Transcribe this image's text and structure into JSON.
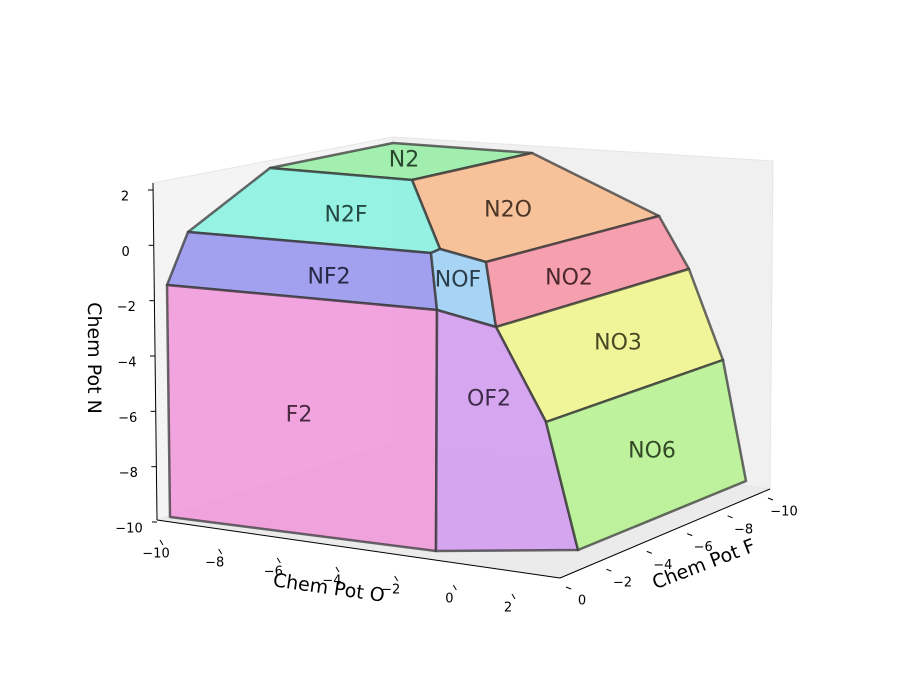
{
  "chart_data": {
    "type": "phase-diagram-3d",
    "axes": {
      "x": {
        "label": "Chem Pot O",
        "ticks": [
          "-10",
          "-8",
          "-6",
          "-4",
          "-2",
          "0",
          "2"
        ]
      },
      "y": {
        "label": "Chem Pot F",
        "ticks": [
          "0",
          "-2",
          "-4",
          "-6",
          "-8",
          "-10"
        ]
      },
      "z": {
        "label": "Chem Pot N",
        "ticks": [
          "2",
          "0",
          "-2",
          "-4",
          "-6",
          "-8",
          "-10"
        ]
      }
    },
    "regions": [
      {
        "name": "N2",
        "color": "#88ee99"
      },
      {
        "name": "N2O",
        "color": "#f9b27e"
      },
      {
        "name": "N2F",
        "color": "#77f2dc"
      },
      {
        "name": "NF2",
        "color": "#8585ee"
      },
      {
        "name": "NOF",
        "color": "#8fcaf5"
      },
      {
        "name": "NO2",
        "color": "#f8849a"
      },
      {
        "name": "NO3",
        "color": "#f1f77e"
      },
      {
        "name": "F2",
        "color": "#f28ad8"
      },
      {
        "name": "OF2",
        "color": "#cf8ef2"
      },
      {
        "name": "NO6",
        "color": "#adf381"
      }
    ]
  }
}
